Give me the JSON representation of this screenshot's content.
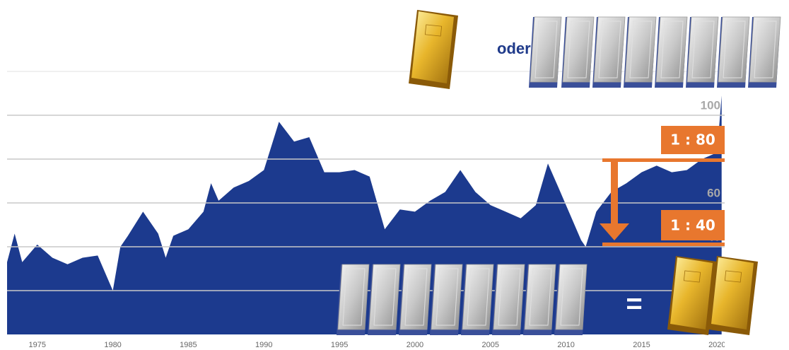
{
  "chart_data": {
    "type": "area",
    "x": [
      1973,
      1973.5,
      1974,
      1975,
      1976,
      1977,
      1978,
      1979,
      1980,
      1980.5,
      1981,
      1982,
      1983,
      1983.5,
      1984,
      1985,
      1986,
      1986.5,
      1987,
      1988,
      1989,
      1990,
      1991,
      1992,
      1993,
      1994,
      1995,
      1996,
      1997,
      1998,
      1999,
      2000,
      2001,
      2002,
      2003,
      2004,
      2005,
      2006,
      2007,
      2008,
      2008.8,
      2009.5,
      2010,
      2011,
      2011.3,
      2012,
      2013,
      2014,
      2015,
      2016,
      2017,
      2018,
      2019,
      2020,
      2020.3
    ],
    "values": [
      33,
      46,
      33,
      41,
      35,
      32,
      35,
      36,
      20,
      40,
      45,
      56,
      46,
      35,
      45,
      48,
      56,
      69,
      61,
      67,
      70,
      75,
      97,
      88,
      90,
      74,
      74,
      75,
      72,
      48,
      57,
      56,
      61,
      65,
      75,
      65,
      59,
      56,
      53,
      59,
      78,
      67,
      59,
      43,
      40,
      56,
      65,
      69,
      74,
      77,
      74,
      75,
      80,
      83,
      109
    ],
    "color": "#1c3a8e",
    "xlim": [
      1973,
      2020.5
    ],
    "xticks": [
      1975,
      1980,
      1985,
      1990,
      1995,
      2000,
      2005,
      2010,
      2015,
      2020
    ],
    "ylim": [
      0,
      120
    ],
    "yticks": [
      20,
      40,
      60,
      80,
      100
    ],
    "grid": true,
    "annotations": {
      "oder": "oder",
      "ratio_high": "1 : 80",
      "ratio_low": "1 : 40",
      "equals": "="
    }
  }
}
